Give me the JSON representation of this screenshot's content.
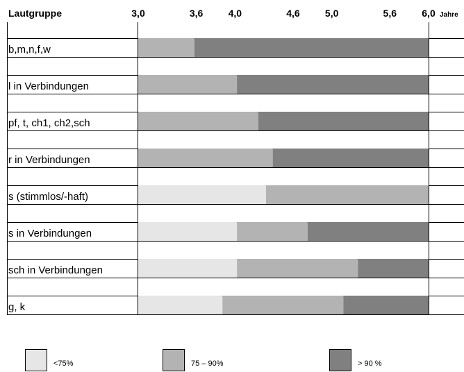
{
  "chart_data": {
    "type": "bar",
    "stacked": true,
    "orientation": "horizontal",
    "category_header": "Lautgruppe",
    "x_unit": "Jahre",
    "x_ticks": [
      "3,0",
      "3,6",
      "4,0",
      "4,6",
      "5,0",
      "5,6",
      "6,0"
    ],
    "xlim": [
      3.0,
      6.0
    ],
    "legend_position": "bottom",
    "legend": [
      {
        "label": "<75%",
        "color": "#e6e6e6"
      },
      {
        "label": "75 – 90%",
        "color": "#b3b3b3"
      },
      {
        "label": "> 90 %",
        "color": "#808080"
      }
    ],
    "categories": [
      "b,m,n,f,w",
      "l in Verbindungen",
      "pf, t, ch1, ch2,sch",
      "r in Verbindungen",
      "s (stimmlos/-haft)",
      "s in Verbindungen",
      "sch in Verbindungen",
      "g, k"
    ],
    "rows": [
      {
        "segments": [
          {
            "from": 3.0,
            "to": 3.58,
            "level": 1
          },
          {
            "from": 3.58,
            "to": 6.0,
            "level": 2
          }
        ]
      },
      {
        "segments": [
          {
            "from": 3.0,
            "to": 4.02,
            "level": 1
          },
          {
            "from": 4.02,
            "to": 6.0,
            "level": 2
          }
        ]
      },
      {
        "segments": [
          {
            "from": 3.0,
            "to": 4.24,
            "level": 1
          },
          {
            "from": 4.24,
            "to": 6.0,
            "level": 2
          }
        ]
      },
      {
        "segments": [
          {
            "from": 3.0,
            "to": 4.39,
            "level": 1
          },
          {
            "from": 4.39,
            "to": 6.0,
            "level": 2
          }
        ]
      },
      {
        "segments": [
          {
            "from": 3.0,
            "to": 4.32,
            "level": 0
          },
          {
            "from": 4.32,
            "to": 6.0,
            "level": 1
          }
        ]
      },
      {
        "segments": [
          {
            "from": 3.0,
            "to": 4.02,
            "level": 0
          },
          {
            "from": 4.02,
            "to": 4.75,
            "level": 1
          },
          {
            "from": 4.75,
            "to": 6.0,
            "level": 2
          }
        ]
      },
      {
        "segments": [
          {
            "from": 3.0,
            "to": 4.02,
            "level": 0
          },
          {
            "from": 4.02,
            "to": 5.27,
            "level": 1
          },
          {
            "from": 5.27,
            "to": 6.0,
            "level": 2
          }
        ]
      },
      {
        "segments": [
          {
            "from": 3.0,
            "to": 3.87,
            "level": 0
          },
          {
            "from": 3.87,
            "to": 5.12,
            "level": 1
          },
          {
            "from": 5.12,
            "to": 6.0,
            "level": 2
          }
        ]
      }
    ]
  }
}
